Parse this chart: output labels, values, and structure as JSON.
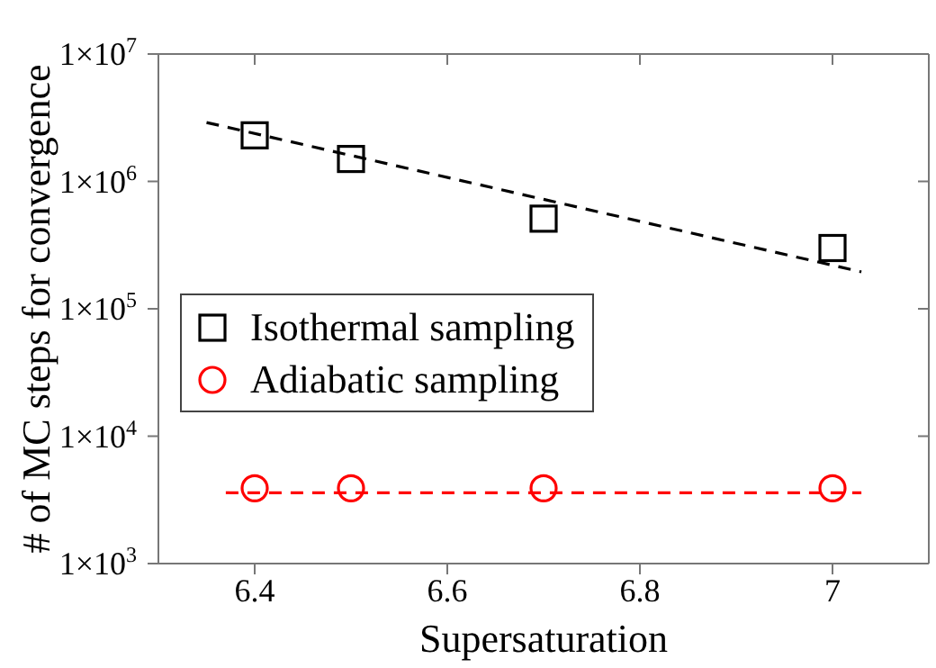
{
  "chart_data": {
    "type": "scatter",
    "xlabel": "Supersaturation",
    "ylabel": "# of MC steps for convergence",
    "x": [
      6.4,
      6.5,
      6.7,
      7
    ],
    "series": [
      {
        "name": "Isothermal sampling",
        "color": "#000000",
        "marker": "square",
        "values": [
          2300000,
          1500000,
          510000,
          300000
        ]
      },
      {
        "name": "Adiabatic sampling",
        "color": "#ff0000",
        "marker": "circle",
        "values": [
          3900,
          3900,
          3900,
          3900
        ]
      },
      {
        "type": "line",
        "color": "#000000",
        "line_style": "dashed",
        "marker": "none",
        "x": [
          6.35,
          7.03
        ],
        "values": [
          2900000,
          195000
        ]
      },
      {
        "type": "line",
        "color": "#ff0000",
        "line_style": "dashed",
        "marker": "none",
        "x": [
          6.37,
          7.03
        ],
        "values": [
          3600,
          3600
        ]
      }
    ],
    "log": "y",
    "xlim": [
      6.3,
      7.1
    ],
    "xticks": [
      6.4,
      6.6,
      6.8,
      7
    ],
    "ylim": [
      1000,
      10000000
    ],
    "yticks": [
      {
        "value": 1000,
        "label": "1×10$^{3}$"
      },
      {
        "value": 10000,
        "label": "1×10$^{4}$"
      },
      {
        "value": 100000,
        "label": "1×10$^{5}$"
      },
      {
        "value": 1000000,
        "label": "1×10$^{6}$"
      },
      {
        "value": 10000000,
        "label": "1×10$^{7}$"
      }
    ],
    "legend": "left"
  }
}
